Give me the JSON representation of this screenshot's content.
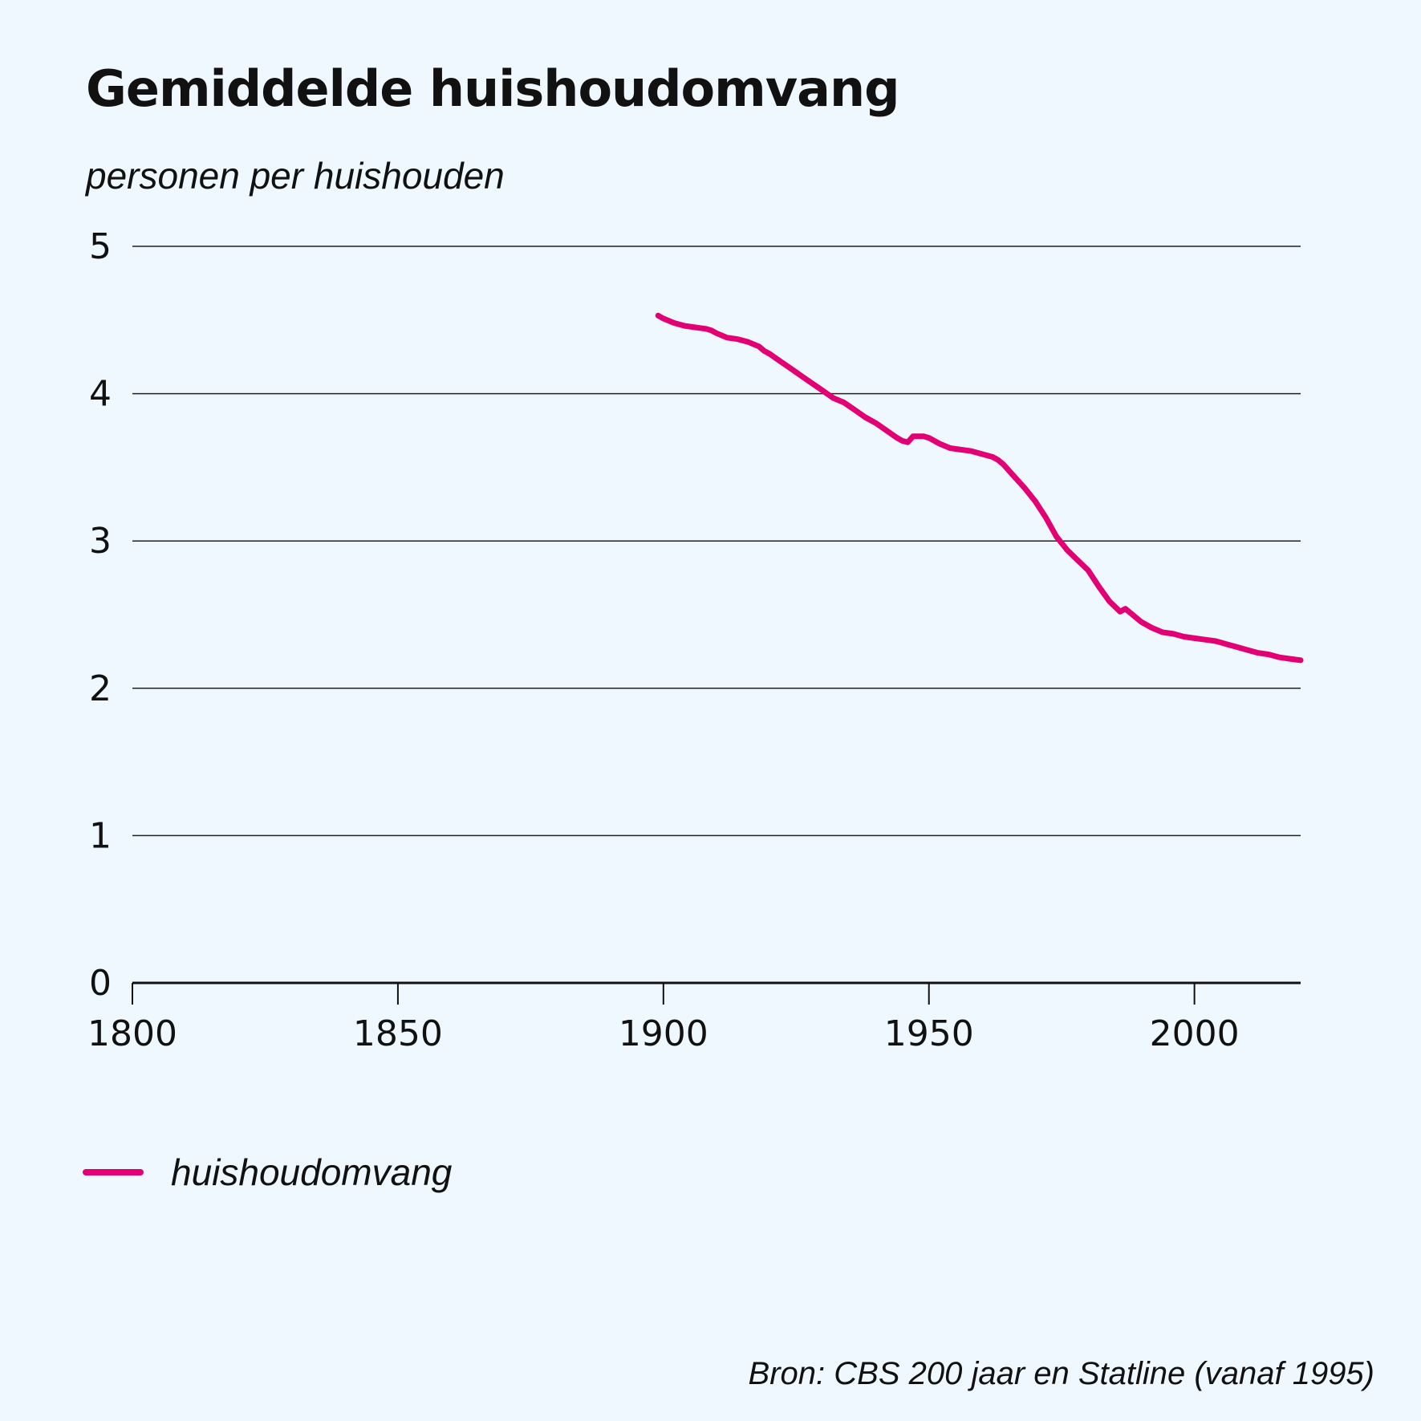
{
  "chart_data": {
    "type": "line",
    "title": "Gemiddelde huishoudomvang",
    "ylabel": "personen per huishouden",
    "xlabel": "",
    "xlim": [
      1800,
      2020
    ],
    "ylim": [
      0,
      5
    ],
    "x_ticks": [
      1800,
      1850,
      1900,
      1950,
      2000
    ],
    "y_ticks": [
      0,
      1,
      2,
      3,
      4,
      5
    ],
    "grid": "horizontal",
    "legend_position": "bottom-left",
    "source": "Bron: CBS 200 jaar en Statline (vanaf 1995)",
    "series": [
      {
        "name": "huishoudomvang",
        "color": "#e20074",
        "x": [
          1899,
          1900,
          1902,
          1904,
          1906,
          1908,
          1909,
          1910,
          1912,
          1914,
          1916,
          1918,
          1919,
          1920,
          1922,
          1924,
          1926,
          1928,
          1930,
          1932,
          1934,
          1936,
          1938,
          1940,
          1942,
          1944,
          1945,
          1946,
          1947,
          1948,
          1949,
          1950,
          1952,
          1954,
          1956,
          1958,
          1960,
          1962,
          1963,
          1964,
          1966,
          1968,
          1970,
          1972,
          1974,
          1976,
          1978,
          1980,
          1982,
          1984,
          1986,
          1987,
          1988,
          1990,
          1992,
          1994,
          1996,
          1998,
          2000,
          2002,
          2004,
          2006,
          2008,
          2010,
          2012,
          2014,
          2016,
          2018,
          2020
        ],
        "values": [
          4.53,
          4.51,
          4.48,
          4.46,
          4.45,
          4.44,
          4.43,
          4.41,
          4.38,
          4.37,
          4.35,
          4.32,
          4.29,
          4.27,
          4.22,
          4.17,
          4.12,
          4.07,
          4.02,
          3.97,
          3.94,
          3.89,
          3.84,
          3.8,
          3.75,
          3.7,
          3.68,
          3.67,
          3.71,
          3.71,
          3.71,
          3.7,
          3.66,
          3.63,
          3.62,
          3.61,
          3.59,
          3.57,
          3.55,
          3.52,
          3.44,
          3.36,
          3.27,
          3.16,
          3.03,
          2.94,
          2.87,
          2.8,
          2.69,
          2.59,
          2.52,
          2.54,
          2.51,
          2.45,
          2.41,
          2.38,
          2.37,
          2.35,
          2.34,
          2.33,
          2.32,
          2.3,
          2.28,
          2.26,
          2.24,
          2.23,
          2.21,
          2.2,
          2.19
        ]
      }
    ]
  }
}
